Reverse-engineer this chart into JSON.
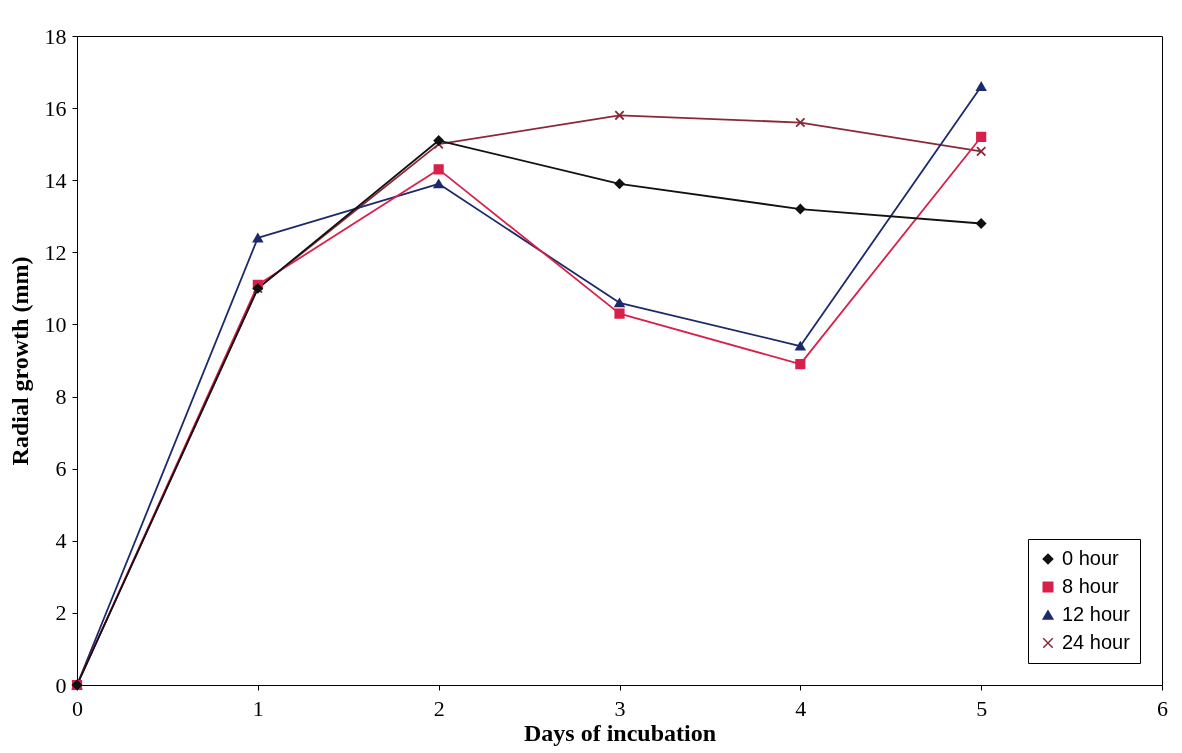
{
  "chart_data": {
    "type": "line",
    "xlabel": "Days of incubation",
    "ylabel": "Radial growth (mm)",
    "x": [
      0,
      1,
      2,
      3,
      4,
      5
    ],
    "xlim": [
      0,
      6
    ],
    "xticks": [
      0,
      1,
      2,
      3,
      4,
      5,
      6
    ],
    "ylim": [
      0,
      18
    ],
    "yticks": [
      0,
      2,
      4,
      6,
      8,
      10,
      12,
      14,
      16,
      18
    ],
    "grid": false,
    "legend": "bottom right",
    "line_style": "solid",
    "series": [
      {
        "name": "0 hour",
        "color": "#111111",
        "marker": "diamond",
        "values": [
          0,
          11.0,
          15.1,
          13.9,
          13.2,
          12.8
        ]
      },
      {
        "name": "8 hour",
        "color": "#d8204a",
        "marker": "square",
        "values": [
          0,
          11.1,
          14.3,
          10.3,
          8.9,
          15.2
        ]
      },
      {
        "name": "12 hour",
        "color": "#1c2a6b",
        "marker": "triangle",
        "values": [
          0,
          12.4,
          13.9,
          10.6,
          9.4,
          16.6
        ]
      },
      {
        "name": "24 hour",
        "color": "#8b2838",
        "marker": "cross",
        "values": [
          0,
          11.0,
          15.0,
          15.8,
          15.6,
          14.8
        ]
      }
    ]
  }
}
